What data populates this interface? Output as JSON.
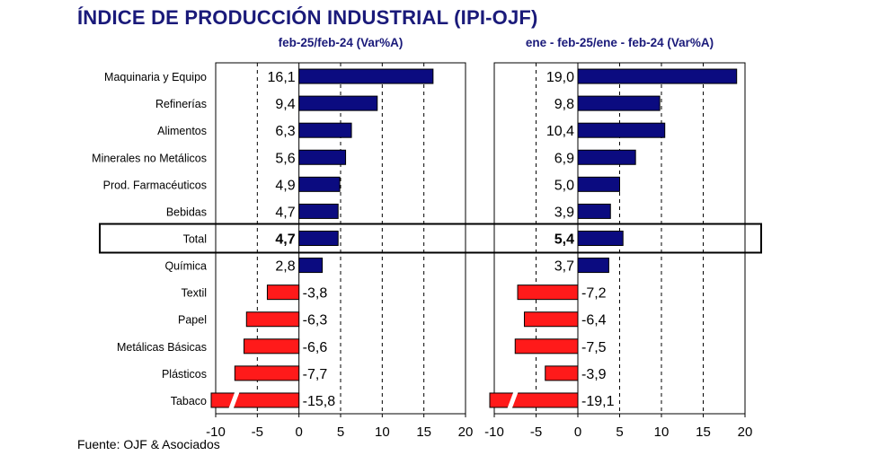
{
  "title": "ÍNDICE DE PRODUCCIÓN INDUSTRIAL (IPI-OJF)",
  "source": "Fuente: OJF & Asociados",
  "colors": {
    "positive": "#0b0b80",
    "negative": "#ff1a1a",
    "title": "#1a1a7a"
  },
  "chart_data": [
    {
      "type": "bar",
      "orientation": "horizontal",
      "title": "feb-25/feb-24  (Var%A)",
      "categories": [
        "Maquinaria y Equipo",
        "Refinerías",
        "Alimentos",
        "Minerales no Metálicos",
        "Prod. Farmacéuticos",
        "Bebidas",
        "Total",
        "Química",
        "Textil",
        "Papel",
        "Metálicas Básicas",
        "Plásticos",
        "Tabaco"
      ],
      "values": [
        16.1,
        9.4,
        6.3,
        5.6,
        4.9,
        4.7,
        4.7,
        2.8,
        -3.8,
        -6.3,
        -6.6,
        -7.7,
        -15.8
      ],
      "value_labels": [
        "16,1",
        "9,4",
        "6,3",
        "5,6",
        "4,9",
        "4,7",
        "4,7",
        "2,8",
        "-3,8",
        "-6,3",
        "-6,6",
        "-7,7",
        "-15,8"
      ],
      "xlim": [
        -10,
        20
      ],
      "xticks": [
        "-10",
        "-5",
        "0",
        "5",
        "10",
        "15",
        "20"
      ],
      "grid": "dashed vertical",
      "highlight": "Total",
      "axis_break": "Tabaco"
    },
    {
      "type": "bar",
      "orientation": "horizontal",
      "title": "ene - feb-25/ene - feb-24  (Var%A)",
      "categories": [
        "Maquinaria y Equipo",
        "Refinerías",
        "Alimentos",
        "Minerales no Metálicos",
        "Prod. Farmacéuticos",
        "Bebidas",
        "Total",
        "Química",
        "Textil",
        "Papel",
        "Metálicas Básicas",
        "Plásticos",
        "Tabaco"
      ],
      "values": [
        19.0,
        9.8,
        10.4,
        6.9,
        5.0,
        3.9,
        5.4,
        3.7,
        -7.2,
        -6.4,
        -7.5,
        -3.9,
        -19.1
      ],
      "value_labels": [
        "19,0",
        "9,8",
        "10,4",
        "6,9",
        "5,0",
        "3,9",
        "5,4",
        "3,7",
        "-7,2",
        "-6,4",
        "-7,5",
        "-3,9",
        "-19,1"
      ],
      "xlim": [
        -10,
        20
      ],
      "xticks": [
        "-10",
        "-5",
        "0",
        "5",
        "10",
        "15",
        "20"
      ],
      "grid": "dashed vertical",
      "highlight": "Total",
      "axis_break": "Tabaco"
    }
  ]
}
